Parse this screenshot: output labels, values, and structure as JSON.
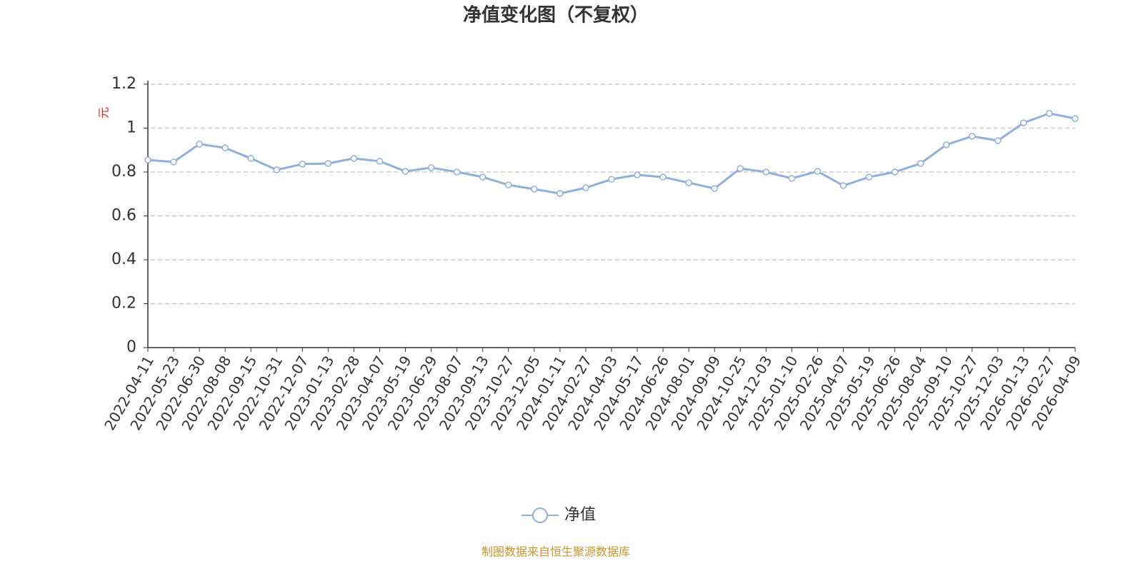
{
  "chart_data": {
    "type": "line",
    "title": "净值变化图（不复权）",
    "y_label": "元",
    "categories": [
      "2022-04-11",
      "2022-05-23",
      "2022-06-30",
      "2022-08-08",
      "2022-09-15",
      "2022-10-31",
      "2022-12-07",
      "2023-01-13",
      "2023-02-28",
      "2023-04-07",
      "2023-05-19",
      "2023-06-29",
      "2023-08-07",
      "2023-09-13",
      "2023-10-27",
      "2023-12-05",
      "2024-01-11",
      "2024-02-27",
      "2024-04-03",
      "2024-05-17",
      "2024-06-26",
      "2024-08-01",
      "2024-09-09",
      "2024-10-25",
      "2024-12-03",
      "2025-01-10",
      "2025-02-26",
      "2025-04-07",
      "2025-05-19",
      "2025-06-26",
      "2025-08-04",
      "2025-09-10",
      "2025-10-27",
      "2025-12-03",
      "2026-01-13",
      "2026-02-27",
      "2026-04-09"
    ],
    "series": [
      {
        "name": "净值",
        "color": "#8fb0dc",
        "values": [
          0.855,
          0.846,
          0.927,
          0.91,
          0.862,
          0.81,
          0.836,
          0.839,
          0.862,
          0.849,
          0.803,
          0.82,
          0.8,
          0.777,
          0.741,
          0.722,
          0.702,
          0.728,
          0.767,
          0.787,
          0.777,
          0.751,
          0.725,
          0.816,
          0.8,
          0.771,
          0.803,
          0.738,
          0.777,
          0.8,
          0.839,
          0.924,
          0.963,
          0.943,
          1.024,
          1.067,
          1.044
        ]
      }
    ],
    "ylim": [
      0,
      1.2
    ],
    "yticks": [
      0,
      0.2,
      0.4,
      0.6,
      0.8,
      1,
      1.2
    ],
    "grid": true,
    "source": "制图数据来自恒生聚源数据库"
  }
}
